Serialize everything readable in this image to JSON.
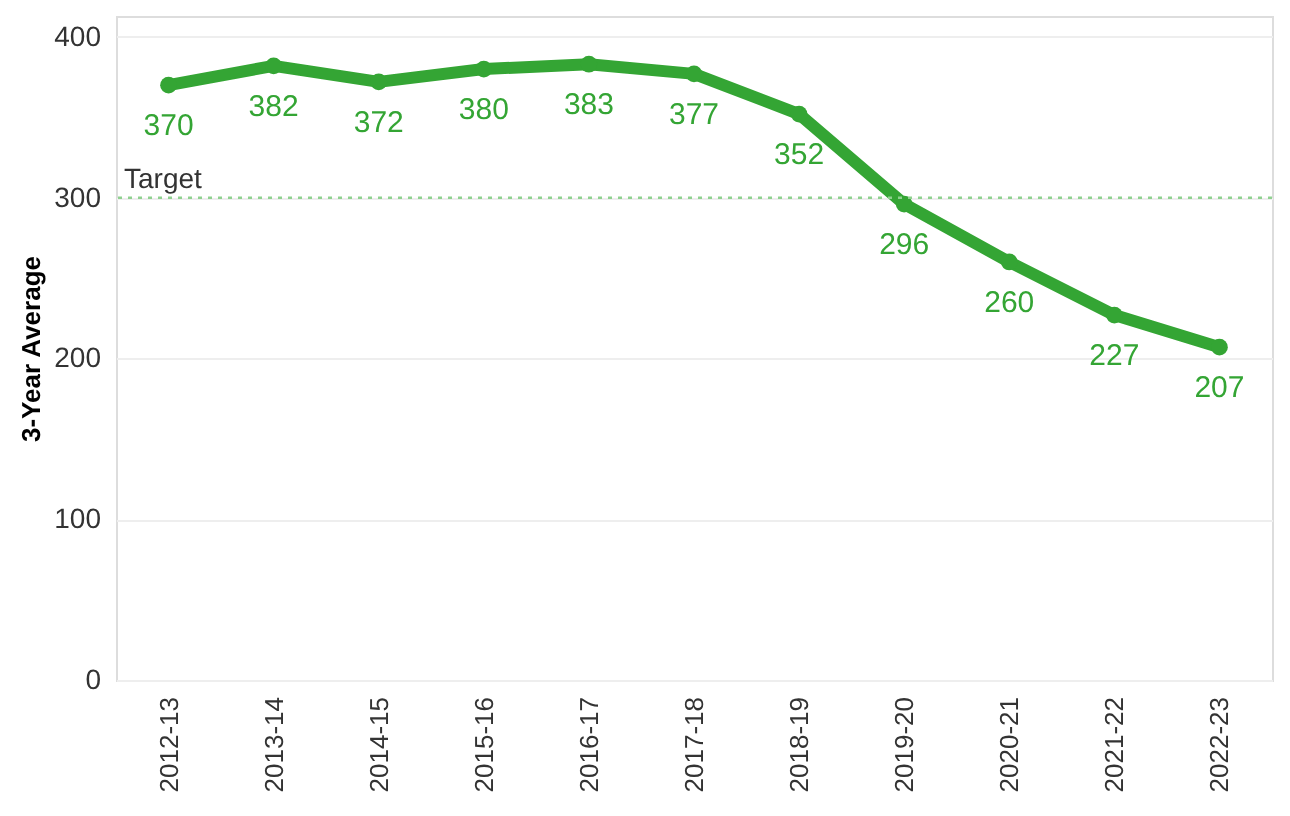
{
  "chart_data": {
    "type": "line",
    "ylabel": "3-Year Average",
    "categories": [
      "2012-13",
      "2013-14",
      "2014-15",
      "2015-16",
      "2016-17",
      "2017-18",
      "2018-19",
      "2019-20",
      "2020-21",
      "2021-22",
      "2022-23"
    ],
    "series": [
      {
        "color": "#34a534",
        "values": [
          370,
          382,
          372,
          380,
          383,
          377,
          352,
          296,
          260,
          227,
          207
        ]
      }
    ],
    "ylim": [
      0,
      413
    ],
    "yticks": [
      0,
      100,
      200,
      300,
      400
    ],
    "grid": "y",
    "marker": "circle",
    "line_style": "solid",
    "data_labels": true,
    "ref_lines": [
      {
        "axis": "y",
        "value": 300,
        "label": "Target",
        "color": "#8fd18f",
        "line_style": "dotted"
      }
    ]
  }
}
